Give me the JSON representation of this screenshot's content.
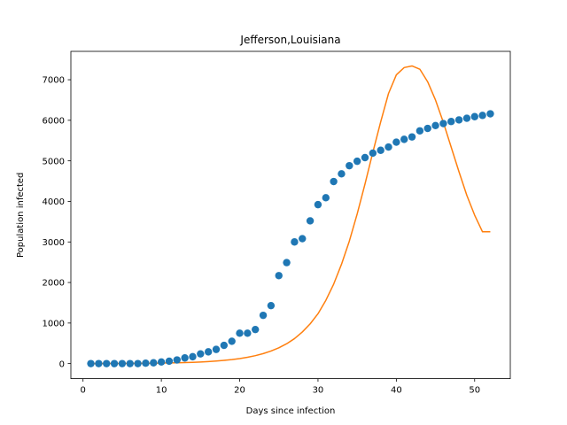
{
  "chart_data": {
    "type": "scatter",
    "title": "Jefferson,Louisiana",
    "xlabel": "Days since infection",
    "ylabel": "Population infected",
    "xlim": [
      -1.55,
      54.55
    ],
    "ylim": [
      -370,
      7700
    ],
    "xticks": [
      0,
      10,
      20,
      30,
      40,
      50
    ],
    "yticks": [
      0,
      1000,
      2000,
      3000,
      4000,
      5000,
      6000,
      7000
    ],
    "grid": false,
    "legend": "none",
    "series": [
      {
        "kind": "scatter",
        "color": "#1f77b4",
        "x": [
          1,
          2,
          3,
          4,
          5,
          6,
          7,
          8,
          9,
          10,
          11,
          12,
          13,
          14,
          15,
          16,
          17,
          18,
          19,
          20,
          21,
          22,
          23,
          24,
          25,
          26,
          27,
          28,
          29,
          30,
          31,
          32,
          33,
          34,
          35,
          36,
          37,
          38,
          39,
          40,
          41,
          42,
          43,
          44,
          45,
          46,
          47,
          48,
          49,
          50,
          51,
          52
        ],
        "y": [
          0,
          0,
          0,
          0,
          0,
          0,
          0,
          10,
          20,
          40,
          60,
          90,
          140,
          170,
          240,
          290,
          350,
          450,
          550,
          750,
          750,
          840,
          1190,
          1430,
          2170,
          2490,
          3000,
          3080,
          3520,
          3920,
          4090,
          4490,
          4680,
          4880,
          4990,
          5080,
          5190,
          5260,
          5340,
          5460,
          5530,
          5590,
          5740,
          5800,
          5870,
          5920,
          5970,
          6010,
          6050,
          6090,
          6120,
          6160
        ]
      },
      {
        "kind": "line",
        "color": "#ff7f0e",
        "x": [
          1,
          2,
          3,
          4,
          5,
          6,
          7,
          8,
          9,
          10,
          11,
          12,
          13,
          14,
          15,
          16,
          17,
          18,
          19,
          20,
          21,
          22,
          23,
          24,
          25,
          26,
          27,
          28,
          29,
          30,
          31,
          32,
          33,
          34,
          35,
          36,
          37,
          38,
          39,
          40,
          41,
          42,
          43,
          44,
          45,
          46,
          47,
          48,
          49,
          50,
          51,
          52
        ],
        "y": [
          0,
          1,
          2,
          3,
          4,
          5,
          6,
          8,
          10,
          13,
          16,
          20,
          25,
          32,
          40,
          50,
          63,
          79,
          99,
          124,
          156,
          196,
          246,
          310,
          390,
          490,
          616,
          780,
          980,
          1230,
          1560,
          1960,
          2450,
          3020,
          3690,
          4430,
          5210,
          5960,
          6660,
          7120,
          7300,
          7340,
          7260,
          6950,
          6500,
          5950,
          5340,
          4730,
          4150,
          3660,
          3250,
          3250
        ]
      }
    ]
  }
}
